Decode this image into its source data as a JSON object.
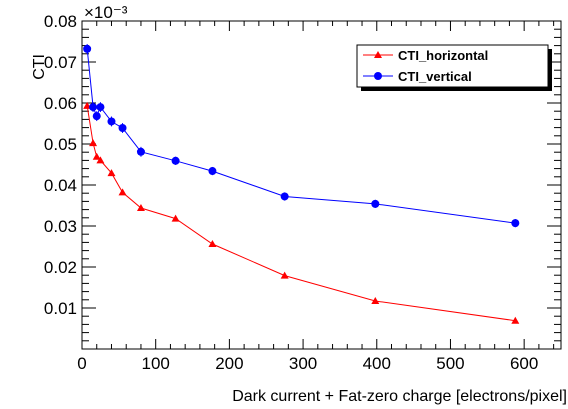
{
  "chart_data": {
    "type": "line",
    "xlabel": "Dark current + Fat-zero charge [electrons/pixel]",
    "ylabel": "CTI",
    "y_multiplier": "×10⁻³",
    "xlim": [
      0,
      650
    ],
    "ylim": [
      0,
      0.08
    ],
    "x_ticks": [
      0,
      100,
      200,
      300,
      400,
      500,
      600
    ],
    "y_ticks": [
      0.01,
      0.02,
      0.03,
      0.04,
      0.05,
      0.06,
      0.07,
      0.08
    ],
    "y_tick_labels": [
      "0.01",
      "0.02",
      "0.03",
      "0.04",
      "0.05",
      "0.06",
      "0.07",
      "0.08"
    ],
    "grid": false,
    "legend_position": "top-right",
    "series": [
      {
        "name": "CTI_horizontal",
        "color": "#ff0000",
        "marker": "triangle",
        "x": [
          7,
          15,
          20,
          25,
          40,
          55,
          80,
          127,
          177,
          275,
          398,
          588
        ],
        "y": [
          0.0593,
          0.0502,
          0.0469,
          0.046,
          0.0429,
          0.0382,
          0.0344,
          0.0318,
          0.0256,
          0.0179,
          0.0117,
          0.0069
        ]
      },
      {
        "name": "CTI_vertical",
        "color": "#0000ff",
        "marker": "circle",
        "x": [
          7,
          15,
          20,
          25,
          40,
          55,
          80,
          127,
          177,
          275,
          398,
          588
        ],
        "y": [
          0.0732,
          0.059,
          0.0568,
          0.059,
          0.0555,
          0.0539,
          0.0481,
          0.0459,
          0.0434,
          0.0372,
          0.0354,
          0.0307
        ],
        "yerr": [
          0.0012,
          0.0012,
          0.0012,
          0.0012,
          0.0012,
          0.0012,
          0.0012,
          0.001,
          0.001,
          0.001,
          0.001,
          0.001
        ]
      }
    ]
  }
}
